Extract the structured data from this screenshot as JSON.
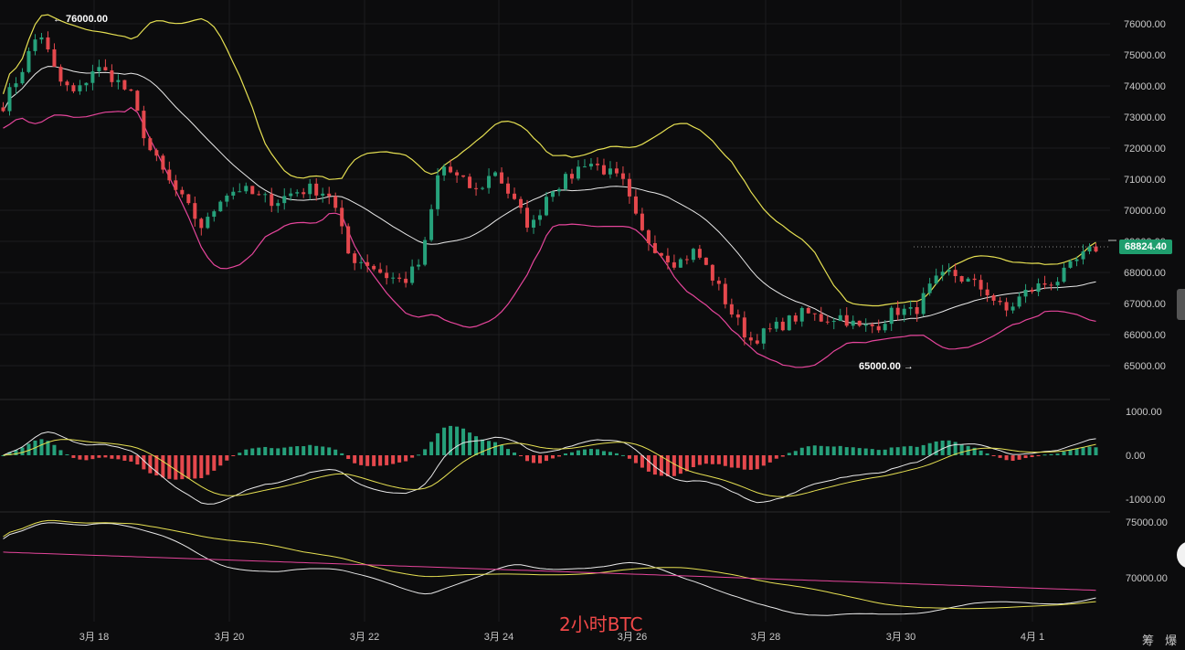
{
  "chart_data": [
    {
      "type": "candlestick",
      "title": "",
      "y_ticks": [
        "76000.00",
        "75000.00",
        "74000.00",
        "73000.00",
        "72000.00",
        "71000.00",
        "70000.00",
        "69000.00",
        "68000.00",
        "67000.00",
        "66000.00",
        "65000.00"
      ],
      "ylim": [
        64100,
        76500
      ],
      "x_ticks": [
        "3月 18",
        "3月 20",
        "3月 22",
        "3月 24",
        "3月 26",
        "3月 28",
        "3月 30",
        "4月 1"
      ],
      "last_price": "68824.40",
      "annotations": [
        {
          "text": "← 76000.00",
          "value": 76000
        },
        {
          "text": "65000.00 →",
          "value": 65000
        }
      ],
      "price_path": [
        73400,
        74500,
        75800,
        74200,
        73700,
        74600,
        74300,
        73700,
        72000,
        71000,
        70200,
        69400,
        70500,
        70700,
        70400,
        70300,
        70600,
        70700,
        70500,
        68500,
        68300,
        67900,
        67700,
        68400,
        71500,
        71000,
        70600,
        71300,
        70300,
        69400,
        70700,
        71000,
        71600,
        71300,
        70900,
        69300,
        68700,
        68300,
        68700,
        67800,
        66700,
        65800,
        66100,
        66400,
        66700,
        66500,
        66600,
        66200,
        66300,
        66800,
        66700,
        67600,
        68000,
        67700,
        67400,
        66700,
        67300,
        67600,
        67800,
        68400,
        68800
      ],
      "overlays": [
        "bollinger-upper",
        "bollinger-middle",
        "bollinger-lower"
      ]
    },
    {
      "type": "macd",
      "y_ticks": [
        "1000.00",
        "0.00",
        "-1000.00"
      ],
      "ylim": [
        -1150,
        1150
      ]
    },
    {
      "type": "line",
      "y_ticks": [
        "75000.00",
        "70000.00"
      ],
      "series_colors": [
        "#e9e9e9",
        "#e6e052",
        "#e5459b"
      ]
    }
  ],
  "watermark": "2小时BTC",
  "brand": "筹 爆",
  "colors": {
    "up": "#26a17b",
    "down": "#e5484d",
    "bb_upper": "#e6e052",
    "bb_mid": "#e9e9e9",
    "bb_lower": "#e5459b",
    "grid": "#1d1d1f",
    "price_tag": "#1f9e6e"
  }
}
